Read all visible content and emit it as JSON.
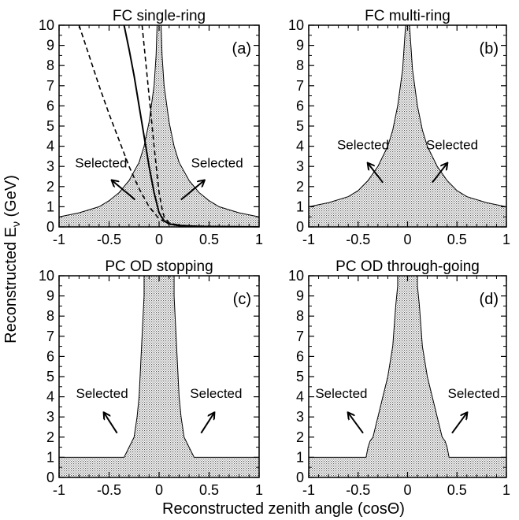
{
  "figure": {
    "ylabel": "Reconstructed E",
    "ylabel_sub": "ν",
    "ylabel_unit": " (GeV)",
    "xlabel": "Reconstructed zenith angle (cosΘ)",
    "selected_label": "Selected"
  },
  "chart_data": [
    {
      "type": "area",
      "title": "FC single-ring",
      "tag": "(a)",
      "xlim": [
        -1,
        1
      ],
      "ylim": [
        0,
        10
      ],
      "xticks": [
        "-1",
        "-0.5",
        "0",
        "0.5",
        "1"
      ],
      "yticks": [
        "0",
        "1",
        "2",
        "3",
        "4",
        "5",
        "6",
        "7",
        "8",
        "9",
        "10"
      ],
      "region": {
        "x": [
          -1,
          -0.8,
          -0.6,
          -0.5,
          -0.4,
          -0.3,
          -0.2,
          -0.15,
          -0.1,
          -0.05,
          -0.03,
          -0.02,
          0.02,
          0.03,
          0.05,
          0.1,
          0.15,
          0.2,
          0.3,
          0.4,
          0.5,
          0.6,
          0.8,
          1
        ],
        "y": [
          0.5,
          0.7,
          1.0,
          1.3,
          1.7,
          2.3,
          3.2,
          4.0,
          5.2,
          7.0,
          8.5,
          10,
          10,
          8.5,
          7.0,
          5.2,
          4.0,
          3.2,
          2.3,
          1.7,
          1.3,
          1.0,
          0.7,
          0.5
        ]
      },
      "curves": [
        {
          "style": "dashed",
          "x": [
            -0.8,
            -0.7,
            -0.6,
            -0.5,
            -0.4,
            -0.3,
            -0.2,
            -0.1,
            0,
            0.1,
            0.3,
            0.6,
            1
          ],
          "y": [
            10,
            8.5,
            7.0,
            5.6,
            4.3,
            3.0,
            1.9,
            1.0,
            0.4,
            0.15,
            0.05,
            0.02,
            0
          ]
        },
        {
          "style": "solid",
          "x": [
            -0.35,
            -0.3,
            -0.25,
            -0.2,
            -0.15,
            -0.1,
            -0.05,
            0,
            0.05,
            0.1,
            0.2,
            0.4,
            0.7,
            1
          ],
          "y": [
            10,
            8.8,
            7.5,
            6.0,
            4.5,
            3.0,
            1.7,
            0.7,
            0.3,
            0.15,
            0.06,
            0.02,
            0.01,
            0
          ]
        },
        {
          "style": "dashed",
          "x": [
            -0.17,
            -0.15,
            -0.12,
            -0.1,
            -0.07,
            -0.05,
            -0.02,
            0,
            0.03,
            0.05,
            0.1,
            0.2,
            0.4,
            0.7,
            1
          ],
          "y": [
            10,
            9.0,
            7.5,
            6.5,
            5.0,
            4.0,
            2.6,
            1.7,
            0.9,
            0.5,
            0.2,
            0.08,
            0.03,
            0.01,
            0
          ]
        }
      ],
      "annotations": [
        {
          "text": "Selected",
          "at": [
            -0.58,
            2.95
          ],
          "arrow_from": [
            -0.47,
            2.3
          ],
          "arrow_to": [
            -0.24,
            1.35
          ]
        },
        {
          "text": "Selected",
          "at": [
            0.58,
            2.95
          ],
          "arrow_from": [
            0.45,
            2.3
          ],
          "arrow_to": [
            0.22,
            1.35
          ]
        }
      ]
    },
    {
      "type": "area",
      "title": "FC multi-ring",
      "tag": "(b)",
      "xlim": [
        -1,
        1
      ],
      "ylim": [
        0,
        10
      ],
      "xticks": [
        "-1",
        "-0.5",
        "0",
        "0.5",
        "1"
      ],
      "yticks": [
        "0",
        "1",
        "2",
        "3",
        "4",
        "5",
        "6",
        "7",
        "8",
        "9",
        "10"
      ],
      "region": {
        "x": [
          -1,
          -0.8,
          -0.6,
          -0.5,
          -0.4,
          -0.3,
          -0.2,
          -0.15,
          -0.1,
          -0.05,
          -0.02,
          0.02,
          0.05,
          0.1,
          0.15,
          0.2,
          0.3,
          0.4,
          0.5,
          0.6,
          0.8,
          1
        ],
        "y": [
          1.0,
          1.2,
          1.5,
          1.8,
          2.3,
          3.0,
          4.0,
          4.8,
          6.0,
          7.8,
          10,
          10,
          7.8,
          6.0,
          4.8,
          4.0,
          3.0,
          2.3,
          1.8,
          1.5,
          1.2,
          1.0
        ]
      },
      "curves": [],
      "annotations": [
        {
          "text": "Selected",
          "at": [
            -0.45,
            3.85
          ],
          "arrow_from": [
            -0.4,
            3.15
          ],
          "arrow_to": [
            -0.25,
            2.2
          ]
        },
        {
          "text": "Selected",
          "at": [
            0.45,
            3.85
          ],
          "arrow_from": [
            0.4,
            3.15
          ],
          "arrow_to": [
            0.25,
            2.2
          ]
        }
      ]
    },
    {
      "type": "area",
      "title": "PC OD stopping",
      "tag": "(c)",
      "xlim": [
        -1,
        1
      ],
      "ylim": [
        0,
        10
      ],
      "xticks": [
        "-1",
        "-0.5",
        "0",
        "0.5",
        "1"
      ],
      "yticks": [
        "0",
        "1",
        "2",
        "3",
        "4",
        "5",
        "6",
        "7",
        "8",
        "9",
        "10"
      ],
      "region": {
        "x": [
          -1,
          -0.35,
          -0.3,
          -0.25,
          -0.22,
          -0.2,
          -0.18,
          -0.15,
          -0.15,
          0.15,
          0.15,
          0.18,
          0.2,
          0.22,
          0.25,
          0.3,
          0.35,
          1
        ],
        "y": [
          1.0,
          1.0,
          1.5,
          2.0,
          3.0,
          4.0,
          6.0,
          9.0,
          10,
          10,
          9.0,
          6.0,
          4.0,
          3.0,
          2.0,
          1.5,
          1.0,
          1.0
        ]
      },
      "curves": [],
      "annotations": [
        {
          "text": "Selected",
          "at": [
            -0.57,
            3.95
          ],
          "arrow_from": [
            -0.55,
            3.2
          ],
          "arrow_to": [
            -0.42,
            2.2
          ]
        },
        {
          "text": "Selected",
          "at": [
            0.57,
            3.95
          ],
          "arrow_from": [
            0.55,
            3.2
          ],
          "arrow_to": [
            0.42,
            2.2
          ]
        }
      ]
    },
    {
      "type": "area",
      "title": "PC OD through-going",
      "tag": "(d)",
      "xlim": [
        -1,
        1
      ],
      "ylim": [
        0,
        10
      ],
      "xticks": [
        "-1",
        "-0.5",
        "0",
        "0.5",
        "1"
      ],
      "yticks": [
        "0",
        "1",
        "2",
        "3",
        "4",
        "5",
        "6",
        "7",
        "8",
        "9",
        "10"
      ],
      "region": {
        "x": [
          -1,
          -0.42,
          -0.4,
          -0.38,
          -0.35,
          -0.3,
          -0.25,
          -0.2,
          -0.15,
          -0.12,
          -0.1,
          -0.1,
          0.1,
          0.1,
          0.12,
          0.15,
          0.2,
          0.25,
          0.3,
          0.35,
          0.38,
          0.4,
          0.42,
          1
        ],
        "y": [
          1.0,
          1.0,
          1.5,
          1.8,
          2.0,
          3.0,
          4.0,
          5.0,
          6.5,
          8.5,
          9.5,
          10,
          10,
          9.5,
          8.5,
          6.5,
          5.0,
          4.0,
          3.0,
          2.0,
          1.8,
          1.5,
          1.0,
          1.0
        ]
      },
      "curves": [],
      "annotations": [
        {
          "text": "Selected",
          "at": [
            -0.67,
            3.95
          ],
          "arrow_from": [
            -0.6,
            3.2
          ],
          "arrow_to": [
            -0.45,
            2.2
          ]
        },
        {
          "text": "Selected",
          "at": [
            0.67,
            3.95
          ],
          "arrow_from": [
            0.6,
            3.2
          ],
          "arrow_to": [
            0.45,
            2.2
          ]
        }
      ]
    }
  ]
}
